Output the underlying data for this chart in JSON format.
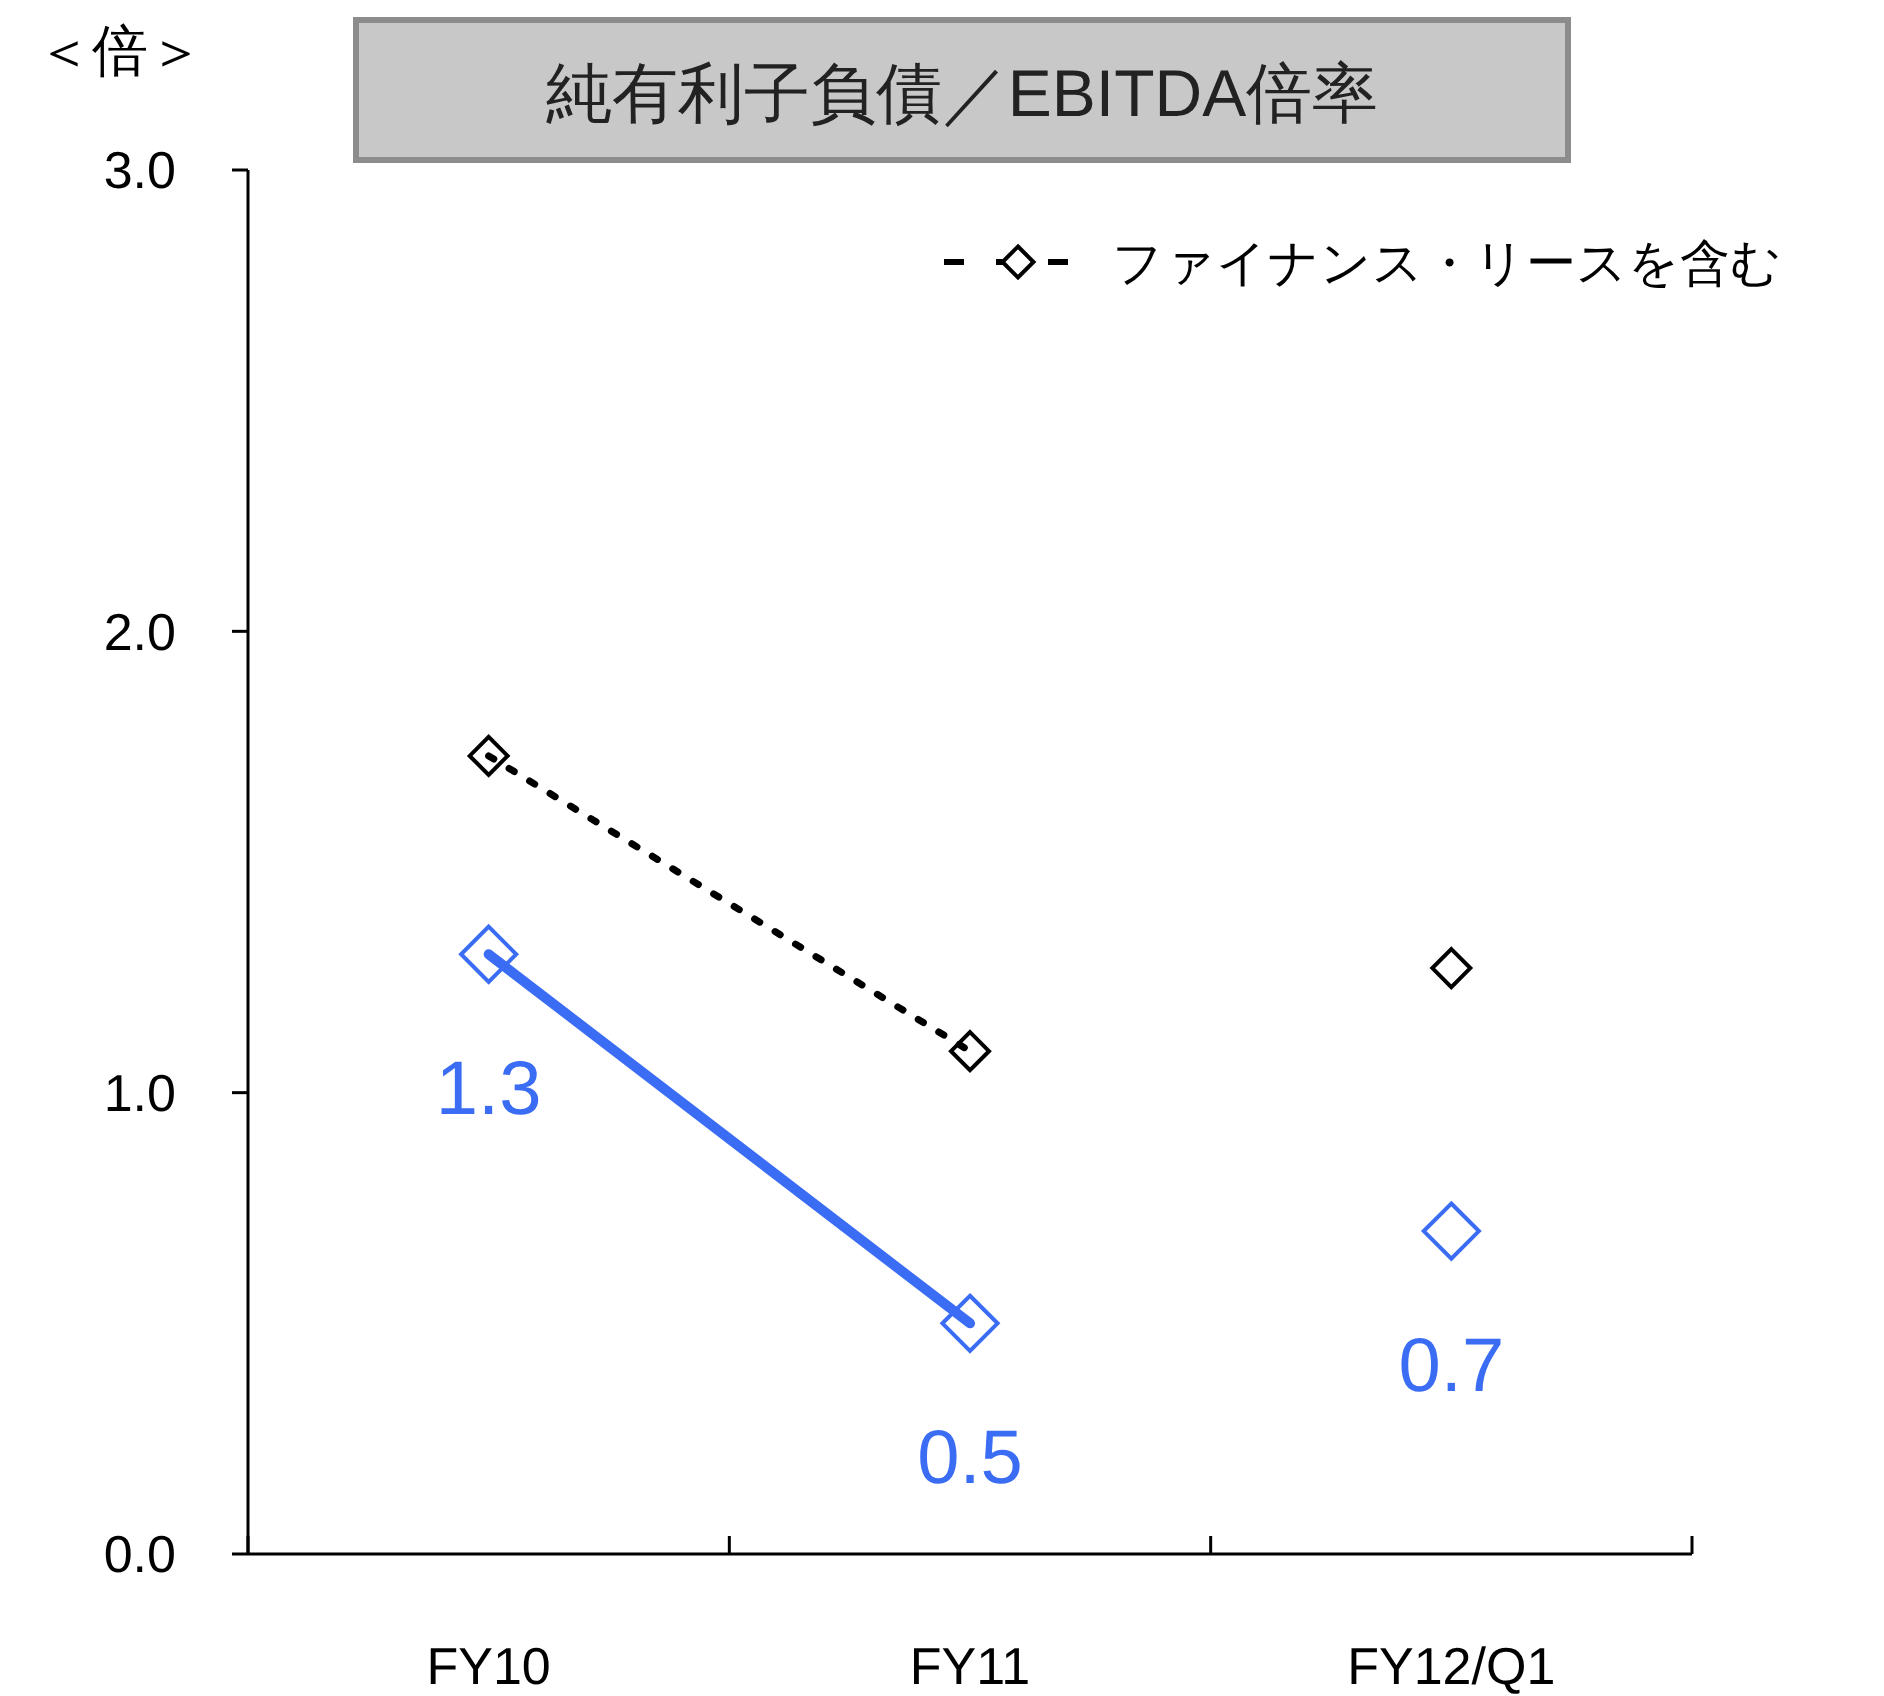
{
  "chart_data": {
    "type": "line",
    "title": "純有利子負債／EBITDA倍率",
    "ylabel": "＜倍＞",
    "categories": [
      "FY10",
      "FY11",
      "FY12/Q1"
    ],
    "ylim": [
      0,
      3
    ],
    "yticks": [
      {
        "value": 0,
        "label": "0.0"
      },
      {
        "value": 1,
        "label": "1.0"
      },
      {
        "value": 2,
        "label": "2.0"
      },
      {
        "value": 3,
        "label": "3.0"
      }
    ],
    "grid": false,
    "legend": "top right",
    "marker": "diamond",
    "series": [
      {
        "color": "#3a6cf4",
        "line_style": "solid",
        "values": [
          1.3,
          0.5,
          null
        ],
        "value_labels": [
          "1.3",
          "0.5",
          null
        ]
      },
      {
        "type": "scatter",
        "color": "#3a6cf4",
        "values": [
          null,
          null,
          0.7
        ],
        "value_labels": [
          null,
          null,
          "0.7"
        ]
      },
      {
        "name": "ファイナンス・リースを含む",
        "color": "#000000",
        "line_style": "dotted",
        "values": [
          1.73,
          1.09,
          null
        ]
      },
      {
        "type": "scatter",
        "color": "#000000",
        "values": [
          null,
          null,
          1.27
        ]
      }
    ]
  }
}
